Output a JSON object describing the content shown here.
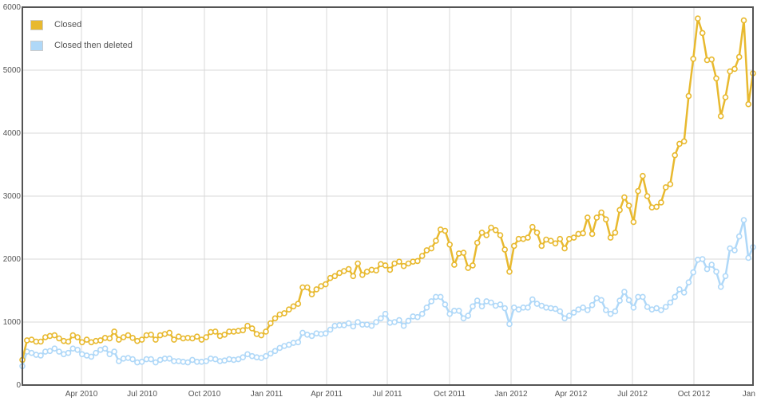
{
  "chart_data": {
    "type": "line",
    "title": "",
    "xlabel": "",
    "ylabel": "",
    "ylim": [
      0,
      6000
    ],
    "yticks": [
      0,
      1000,
      2000,
      3000,
      4000,
      5000,
      6000
    ],
    "xticks": [
      "Apr 2010",
      "Jul 2010",
      "Oct 2010",
      "Jan 2011",
      "Apr 2011",
      "Jul 2011",
      "Oct 2011",
      "Jan 2012",
      "Apr 2012",
      "Jul 2012",
      "Oct 2012",
      "Jan 2"
    ],
    "grid": true,
    "legend_position": "top-left inside",
    "x_interval": "weekly, starting early Jan 2010",
    "series": [
      {
        "name": "Closed",
        "color": "#e8b92f",
        "values": [
          400,
          710,
          720,
          690,
          690,
          760,
          780,
          790,
          740,
          700,
          690,
          790,
          760,
          680,
          720,
          680,
          700,
          710,
          750,
          740,
          850,
          720,
          760,
          790,
          750,
          700,
          720,
          790,
          800,
          720,
          790,
          810,
          830,
          720,
          770,
          740,
          750,
          740,
          770,
          720,
          760,
          840,
          850,
          780,
          800,
          850,
          850,
          860,
          870,
          940,
          900,
          810,
          790,
          850,
          980,
          1060,
          1120,
          1140,
          1200,
          1250,
          1290,
          1550,
          1550,
          1440,
          1520,
          1570,
          1600,
          1700,
          1730,
          1780,
          1810,
          1840,
          1730,
          1930,
          1750,
          1800,
          1830,
          1820,
          1920,
          1900,
          1830,
          1930,
          1960,
          1890,
          1930,
          1960,
          1970,
          2050,
          2140,
          2170,
          2290,
          2470,
          2450,
          2230,
          1910,
          2090,
          2100,
          1860,
          1900,
          2260,
          2420,
          2380,
          2500,
          2460,
          2380,
          2150,
          1800,
          2210,
          2320,
          2320,
          2340,
          2510,
          2420,
          2210,
          2310,
          2290,
          2250,
          2320,
          2170,
          2320,
          2340,
          2400,
          2410,
          2660,
          2400,
          2660,
          2740,
          2630,
          2340,
          2420,
          2780,
          2980,
          2850,
          2590,
          3080,
          3320,
          3000,
          2820,
          2830,
          2900,
          3140,
          3190,
          3650,
          3830,
          3870,
          4590,
          5180,
          5820,
          5590,
          5160,
          5170,
          4870,
          4270,
          4570,
          4980,
          5020,
          5210,
          5790,
          4460,
          4950
        ]
      },
      {
        "name": "Closed then deleted",
        "color": "#afd8f8",
        "values": [
          300,
          530,
          510,
          480,
          470,
          530,
          540,
          580,
          530,
          490,
          510,
          580,
          560,
          490,
          470,
          450,
          510,
          560,
          580,
          490,
          530,
          380,
          420,
          430,
          410,
          360,
          370,
          410,
          410,
          360,
          400,
          420,
          420,
          380,
          380,
          370,
          360,
          400,
          370,
          370,
          380,
          420,
          410,
          380,
          390,
          410,
          400,
          410,
          440,
          490,
          460,
          440,
          430,
          460,
          500,
          540,
          590,
          620,
          640,
          670,
          680,
          830,
          800,
          780,
          820,
          810,
          820,
          880,
          940,
          950,
          950,
          980,
          930,
          1000,
          960,
          960,
          940,
          1000,
          1060,
          1130,
          990,
          1000,
          1030,
          940,
          1020,
          1090,
          1080,
          1130,
          1230,
          1330,
          1400,
          1400,
          1280,
          1130,
          1180,
          1180,
          1060,
          1100,
          1250,
          1340,
          1250,
          1330,
          1310,
          1260,
          1280,
          1220,
          970,
          1230,
          1200,
          1230,
          1230,
          1360,
          1290,
          1260,
          1230,
          1220,
          1210,
          1170,
          1060,
          1100,
          1150,
          1200,
          1230,
          1190,
          1270,
          1380,
          1350,
          1190,
          1130,
          1170,
          1340,
          1480,
          1350,
          1230,
          1400,
          1400,
          1240,
          1200,
          1220,
          1190,
          1240,
          1310,
          1400,
          1520,
          1470,
          1630,
          1790,
          1990,
          2000,
          1840,
          1910,
          1800,
          1560,
          1730,
          2170,
          2140,
          2360,
          2620,
          2020,
          2190
        ]
      }
    ]
  },
  "legend": {
    "items": [
      {
        "label": "Closed",
        "color": "#e8b92f"
      },
      {
        "label": "Closed then deleted",
        "color": "#afd8f8"
      }
    ]
  },
  "axes": {
    "y_labels": [
      "0",
      "1000",
      "2000",
      "3000",
      "4000",
      "5000",
      "6000"
    ],
    "x_labels": [
      "Apr 2010",
      "Jul 2010",
      "Oct 2010",
      "Jan 2011",
      "Apr 2011",
      "Jul 2011",
      "Oct 2011",
      "Jan 2012",
      "Apr 2012",
      "Jul 2012",
      "Oct 2012",
      "Jan 2"
    ]
  }
}
